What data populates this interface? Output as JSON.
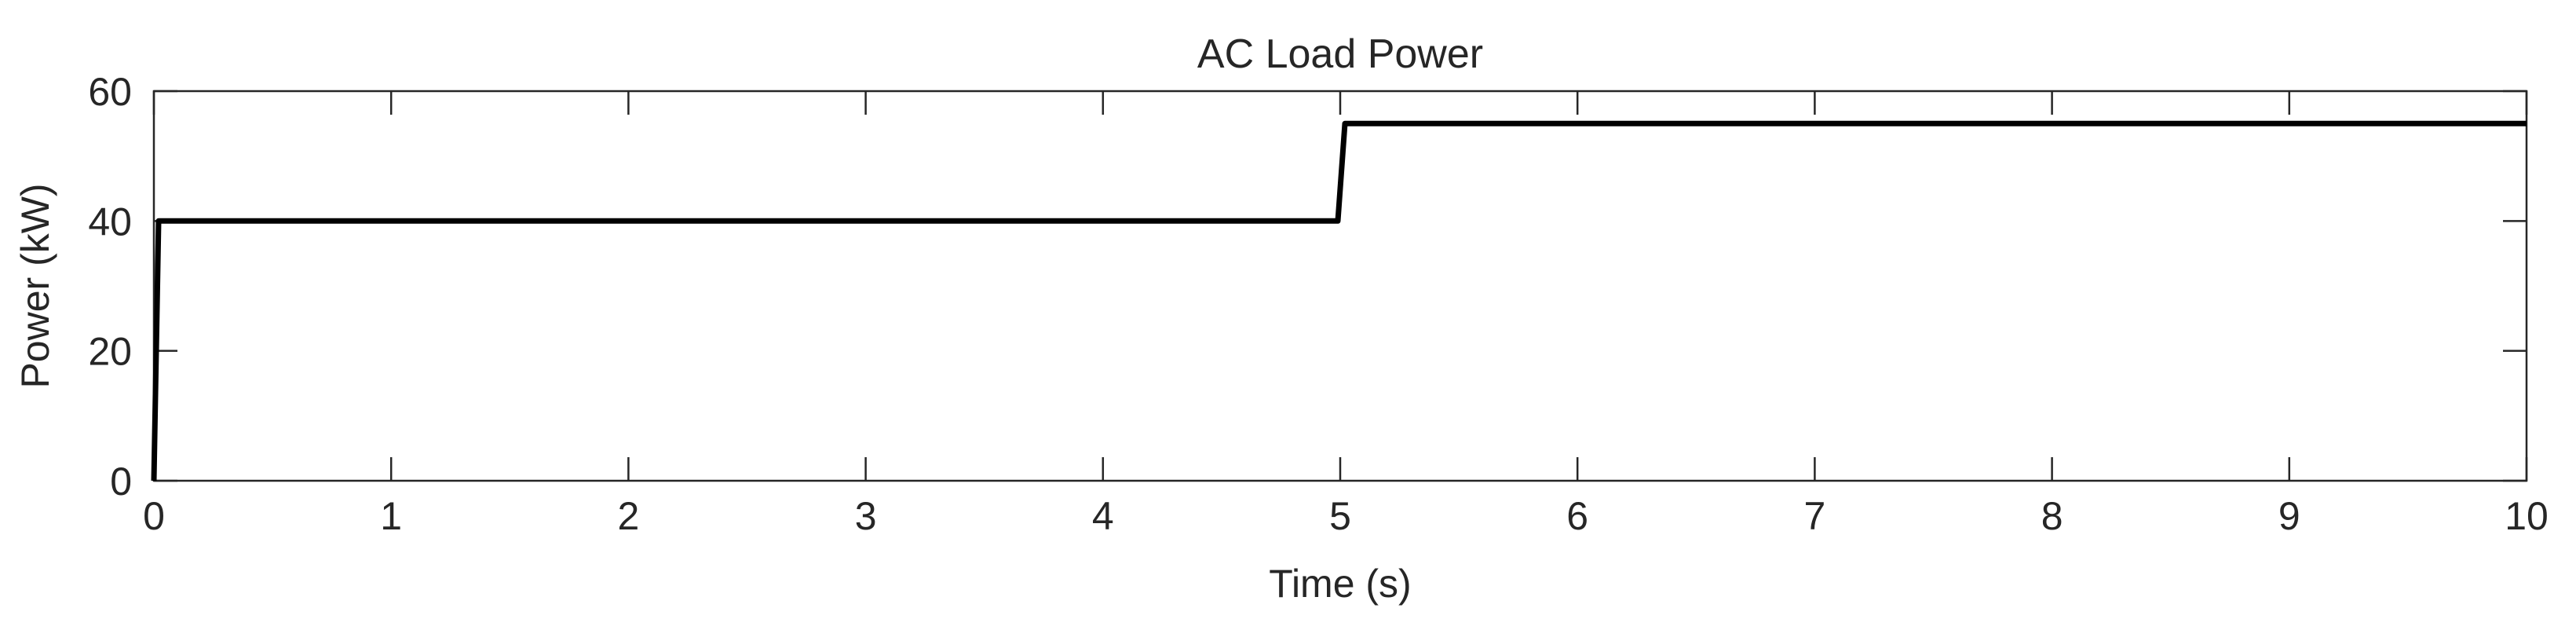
{
  "chart_data": {
    "type": "line",
    "title": "AC Load Power",
    "xlabel": "Time (s)",
    "ylabel": "Power (kW)",
    "xlim": [
      0,
      10
    ],
    "ylim": [
      0,
      60
    ],
    "xticks": [
      0,
      1,
      2,
      3,
      4,
      5,
      6,
      7,
      8,
      9,
      10
    ],
    "yticks": [
      0,
      20,
      40,
      60
    ],
    "xtick_labels": [
      "0",
      "1",
      "2",
      "3",
      "4",
      "5",
      "6",
      "7",
      "8",
      "9",
      "10"
    ],
    "ytick_labels": [
      "0",
      "20",
      "40",
      "60"
    ],
    "grid": false,
    "legend": "none",
    "series": [
      {
        "color": "#000000",
        "x": [
          0,
          0.02,
          0.05,
          1,
          2,
          3,
          4,
          4.99,
          5.02,
          5.05,
          6,
          7,
          8,
          9,
          10
        ],
        "y": [
          0,
          40,
          40,
          40,
          40,
          40,
          40,
          40,
          55,
          55,
          55,
          55,
          55,
          55,
          55
        ]
      }
    ]
  }
}
